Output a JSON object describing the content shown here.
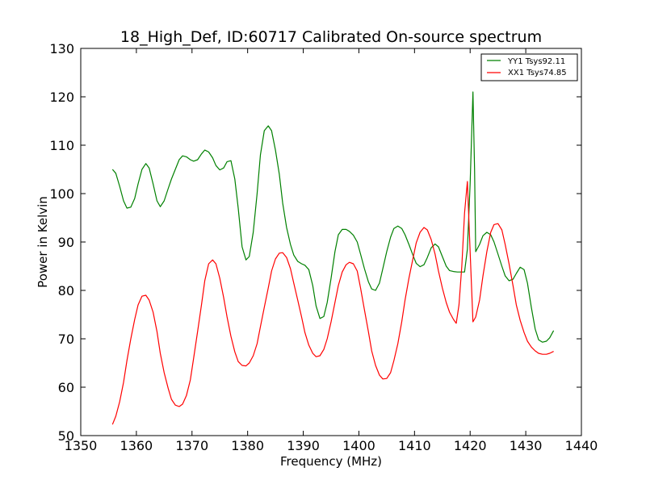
{
  "chart_data": {
    "type": "line",
    "title": "18_High_Def, ID:60717 Calibrated On-source spectrum",
    "xlabel": "Frequency (MHz)",
    "ylabel": "Power in Kelvin",
    "xlim": [
      1350,
      1440
    ],
    "ylim": [
      50,
      130
    ],
    "xticks": [
      1350,
      1360,
      1370,
      1380,
      1390,
      1400,
      1410,
      1420,
      1430,
      1440
    ],
    "yticks": [
      50,
      60,
      70,
      80,
      90,
      100,
      110,
      120,
      130
    ],
    "grid": false,
    "legend_position": "top-right",
    "series": [
      {
        "name": "YY1 Tsys92.11",
        "color": "#008000",
        "points": [
          [
            1355.7,
            105.0
          ],
          [
            1356.3,
            104.2
          ],
          [
            1357.0,
            101.5
          ],
          [
            1357.7,
            98.5
          ],
          [
            1358.3,
            97.0
          ],
          [
            1359.0,
            97.2
          ],
          [
            1359.7,
            99.0
          ],
          [
            1360.3,
            102.0
          ],
          [
            1361.0,
            105.0
          ],
          [
            1361.7,
            106.2
          ],
          [
            1362.3,
            105.3
          ],
          [
            1363.0,
            102.0
          ],
          [
            1363.7,
            98.5
          ],
          [
            1364.3,
            97.3
          ],
          [
            1365.0,
            98.5
          ],
          [
            1365.7,
            101.0
          ],
          [
            1366.3,
            103.0
          ],
          [
            1367.0,
            105.0
          ],
          [
            1367.7,
            107.0
          ],
          [
            1368.3,
            107.8
          ],
          [
            1369.0,
            107.6
          ],
          [
            1369.7,
            107.0
          ],
          [
            1370.3,
            106.7
          ],
          [
            1371.0,
            107.0
          ],
          [
            1371.7,
            108.2
          ],
          [
            1372.3,
            109.0
          ],
          [
            1373.0,
            108.6
          ],
          [
            1373.7,
            107.4
          ],
          [
            1374.3,
            105.8
          ],
          [
            1375.0,
            104.9
          ],
          [
            1375.7,
            105.3
          ],
          [
            1376.3,
            106.6
          ],
          [
            1377.0,
            106.8
          ],
          [
            1377.7,
            103.0
          ],
          [
            1378.3,
            97.0
          ],
          [
            1379.0,
            89.0
          ],
          [
            1379.7,
            86.3
          ],
          [
            1380.3,
            87.0
          ],
          [
            1381.0,
            92.0
          ],
          [
            1381.7,
            100.0
          ],
          [
            1382.3,
            108.0
          ],
          [
            1383.0,
            113.0
          ],
          [
            1383.7,
            114.0
          ],
          [
            1384.3,
            113.0
          ],
          [
            1385.0,
            109.0
          ],
          [
            1385.7,
            104.0
          ],
          [
            1386.3,
            98.0
          ],
          [
            1387.0,
            93.0
          ],
          [
            1387.7,
            89.5
          ],
          [
            1388.3,
            87.3
          ],
          [
            1389.0,
            86.0
          ],
          [
            1389.7,
            85.5
          ],
          [
            1390.3,
            85.2
          ],
          [
            1391.0,
            84.3
          ],
          [
            1391.7,
            81.0
          ],
          [
            1392.3,
            76.8
          ],
          [
            1393.0,
            74.2
          ],
          [
            1393.7,
            74.6
          ],
          [
            1394.3,
            77.5
          ],
          [
            1395.0,
            82.5
          ],
          [
            1395.7,
            88.0
          ],
          [
            1396.3,
            91.5
          ],
          [
            1397.0,
            92.6
          ],
          [
            1397.7,
            92.6
          ],
          [
            1398.3,
            92.2
          ],
          [
            1399.0,
            91.4
          ],
          [
            1399.7,
            90.0
          ],
          [
            1400.3,
            87.5
          ],
          [
            1401.0,
            84.5
          ],
          [
            1401.7,
            81.8
          ],
          [
            1402.3,
            80.3
          ],
          [
            1403.0,
            80.0
          ],
          [
            1403.7,
            81.5
          ],
          [
            1404.3,
            84.5
          ],
          [
            1405.0,
            88.0
          ],
          [
            1405.7,
            91.0
          ],
          [
            1406.3,
            92.8
          ],
          [
            1407.0,
            93.3
          ],
          [
            1407.7,
            92.8
          ],
          [
            1408.3,
            91.5
          ],
          [
            1409.0,
            89.5
          ],
          [
            1409.7,
            87.3
          ],
          [
            1410.3,
            85.6
          ],
          [
            1411.0,
            84.9
          ],
          [
            1411.7,
            85.3
          ],
          [
            1412.3,
            86.8
          ],
          [
            1413.0,
            88.8
          ],
          [
            1413.7,
            89.6
          ],
          [
            1414.3,
            89.0
          ],
          [
            1415.0,
            87.0
          ],
          [
            1415.7,
            85.0
          ],
          [
            1416.3,
            84.1
          ],
          [
            1417.0,
            83.9
          ],
          [
            1417.7,
            83.8
          ],
          [
            1418.3,
            83.8
          ],
          [
            1419.0,
            83.8
          ],
          [
            1419.5,
            88.5
          ],
          [
            1420.0,
            102.0
          ],
          [
            1420.5,
            121.0
          ],
          [
            1420.8,
            105.0
          ],
          [
            1421.0,
            88.0
          ],
          [
            1421.7,
            89.5
          ],
          [
            1422.3,
            91.3
          ],
          [
            1423.0,
            92.0
          ],
          [
            1423.7,
            91.5
          ],
          [
            1424.3,
            90.0
          ],
          [
            1425.0,
            87.5
          ],
          [
            1425.7,
            85.0
          ],
          [
            1426.3,
            83.0
          ],
          [
            1427.0,
            82.0
          ],
          [
            1427.7,
            82.3
          ],
          [
            1428.3,
            83.5
          ],
          [
            1429.0,
            84.8
          ],
          [
            1429.7,
            84.3
          ],
          [
            1430.3,
            81.5
          ],
          [
            1431.0,
            76.5
          ],
          [
            1431.7,
            72.0
          ],
          [
            1432.3,
            69.8
          ],
          [
            1433.0,
            69.3
          ],
          [
            1433.7,
            69.5
          ],
          [
            1434.3,
            70.2
          ],
          [
            1435.0,
            71.7
          ]
        ]
      },
      {
        "name": "XX1 Tsys74.85",
        "color": "#ff0000",
        "points": [
          [
            1355.7,
            52.3
          ],
          [
            1356.3,
            54.0
          ],
          [
            1357.0,
            57.0
          ],
          [
            1357.7,
            61.0
          ],
          [
            1358.3,
            65.5
          ],
          [
            1359.0,
            70.0
          ],
          [
            1359.7,
            74.0
          ],
          [
            1360.3,
            77.0
          ],
          [
            1361.0,
            78.8
          ],
          [
            1361.7,
            79.0
          ],
          [
            1362.3,
            78.0
          ],
          [
            1363.0,
            75.5
          ],
          [
            1363.7,
            71.5
          ],
          [
            1364.3,
            67.0
          ],
          [
            1365.0,
            63.0
          ],
          [
            1365.7,
            59.8
          ],
          [
            1366.3,
            57.5
          ],
          [
            1367.0,
            56.3
          ],
          [
            1367.7,
            56.0
          ],
          [
            1368.3,
            56.5
          ],
          [
            1369.0,
            58.3
          ],
          [
            1369.7,
            61.5
          ],
          [
            1370.3,
            66.0
          ],
          [
            1371.0,
            71.5
          ],
          [
            1371.7,
            77.0
          ],
          [
            1372.3,
            82.0
          ],
          [
            1373.0,
            85.5
          ],
          [
            1373.7,
            86.3
          ],
          [
            1374.3,
            85.5
          ],
          [
            1375.0,
            82.5
          ],
          [
            1375.7,
            78.5
          ],
          [
            1376.3,
            74.5
          ],
          [
            1377.0,
            70.5
          ],
          [
            1377.7,
            67.3
          ],
          [
            1378.3,
            65.3
          ],
          [
            1379.0,
            64.5
          ],
          [
            1379.7,
            64.4
          ],
          [
            1380.3,
            65.0
          ],
          [
            1381.0,
            66.5
          ],
          [
            1381.7,
            69.0
          ],
          [
            1382.3,
            72.5
          ],
          [
            1383.0,
            76.5
          ],
          [
            1383.7,
            80.5
          ],
          [
            1384.3,
            84.0
          ],
          [
            1385.0,
            86.5
          ],
          [
            1385.7,
            87.7
          ],
          [
            1386.3,
            87.8
          ],
          [
            1387.0,
            86.8
          ],
          [
            1387.7,
            84.5
          ],
          [
            1388.3,
            81.5
          ],
          [
            1389.0,
            78.0
          ],
          [
            1389.7,
            74.5
          ],
          [
            1390.3,
            71.3
          ],
          [
            1391.0,
            68.7
          ],
          [
            1391.7,
            67.0
          ],
          [
            1392.3,
            66.3
          ],
          [
            1393.0,
            66.5
          ],
          [
            1393.7,
            67.8
          ],
          [
            1394.3,
            70.0
          ],
          [
            1395.0,
            73.5
          ],
          [
            1395.7,
            77.5
          ],
          [
            1396.3,
            81.0
          ],
          [
            1397.0,
            83.8
          ],
          [
            1397.7,
            85.3
          ],
          [
            1398.3,
            85.8
          ],
          [
            1399.0,
            85.5
          ],
          [
            1399.7,
            84.0
          ],
          [
            1400.3,
            80.5
          ],
          [
            1401.0,
            76.0
          ],
          [
            1401.7,
            71.5
          ],
          [
            1402.3,
            67.5
          ],
          [
            1403.0,
            64.5
          ],
          [
            1403.7,
            62.5
          ],
          [
            1404.3,
            61.7
          ],
          [
            1405.0,
            61.8
          ],
          [
            1405.7,
            63.0
          ],
          [
            1406.3,
            65.5
          ],
          [
            1407.0,
            69.0
          ],
          [
            1407.7,
            73.5
          ],
          [
            1408.3,
            78.0
          ],
          [
            1409.0,
            82.5
          ],
          [
            1409.7,
            86.5
          ],
          [
            1410.3,
            89.8
          ],
          [
            1411.0,
            92.0
          ],
          [
            1411.7,
            93.0
          ],
          [
            1412.3,
            92.5
          ],
          [
            1413.0,
            90.5
          ],
          [
            1413.7,
            87.5
          ],
          [
            1414.3,
            84.0
          ],
          [
            1415.0,
            80.5
          ],
          [
            1415.7,
            77.5
          ],
          [
            1416.3,
            75.5
          ],
          [
            1417.0,
            74.0
          ],
          [
            1417.5,
            73.2
          ],
          [
            1418.0,
            77.0
          ],
          [
            1418.5,
            85.0
          ],
          [
            1419.0,
            96.0
          ],
          [
            1419.5,
            102.5
          ],
          [
            1420.0,
            88.0
          ],
          [
            1420.5,
            73.5
          ],
          [
            1421.0,
            74.5
          ],
          [
            1421.7,
            78.0
          ],
          [
            1422.3,
            83.0
          ],
          [
            1423.0,
            88.0
          ],
          [
            1423.7,
            92.0
          ],
          [
            1424.3,
            93.6
          ],
          [
            1425.0,
            93.8
          ],
          [
            1425.7,
            92.5
          ],
          [
            1426.3,
            89.5
          ],
          [
            1427.0,
            85.5
          ],
          [
            1427.7,
            81.0
          ],
          [
            1428.3,
            77.0
          ],
          [
            1429.0,
            73.8
          ],
          [
            1429.7,
            71.3
          ],
          [
            1430.3,
            69.5
          ],
          [
            1431.0,
            68.3
          ],
          [
            1431.7,
            67.5
          ],
          [
            1432.3,
            67.0
          ],
          [
            1433.0,
            66.8
          ],
          [
            1433.7,
            66.8
          ],
          [
            1434.3,
            67.0
          ],
          [
            1435.0,
            67.4
          ]
        ]
      }
    ]
  }
}
